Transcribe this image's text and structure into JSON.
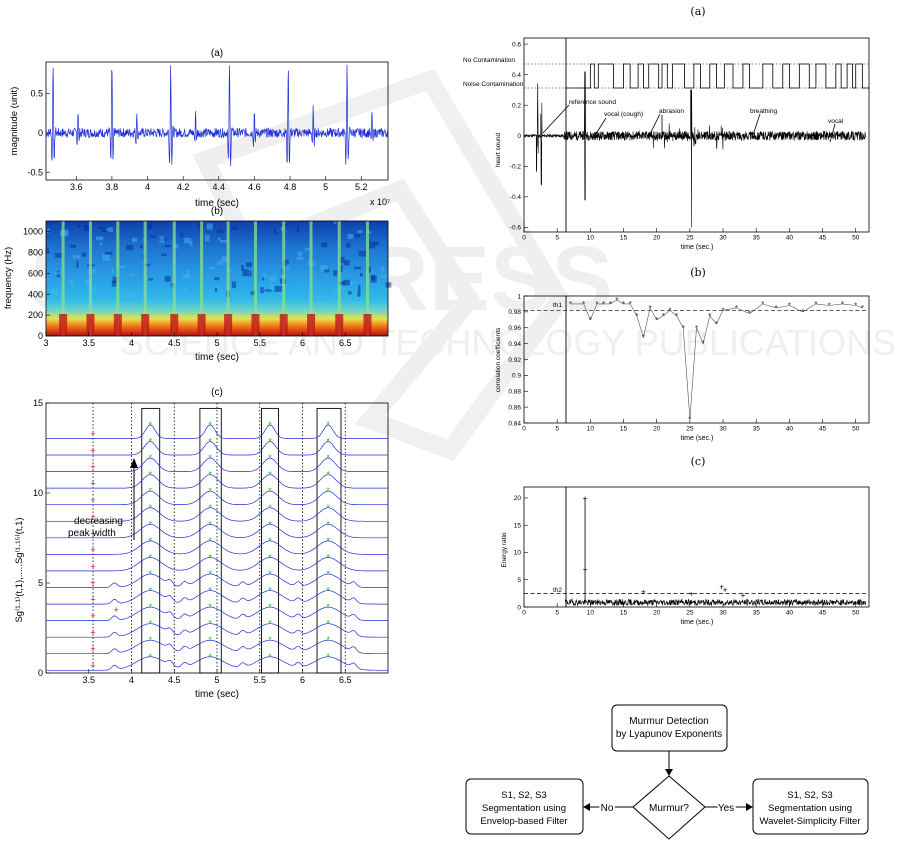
{
  "panels": {
    "left_a": {
      "label": "(a)",
      "ylabel": "magnitude (unit)",
      "xlabel": "time (sec)",
      "xticks": [
        "3.6",
        "3.8",
        "4",
        "4.2",
        "4.4",
        "4.6",
        "4.8",
        "5",
        "5.2"
      ],
      "yticks": [
        "0.5",
        "0",
        "-0.5"
      ],
      "exponent": "x 10⁷"
    },
    "left_b": {
      "label": "(b)",
      "ylabel": "frequency (Hz)",
      "xlabel": "time (sec)",
      "xticks": [
        "3",
        "3.5",
        "4",
        "4.5",
        "5",
        "5.5",
        "6",
        "6.5"
      ],
      "yticks": [
        "1000",
        "800",
        "600",
        "400",
        "200",
        "0"
      ]
    },
    "left_c": {
      "label": "(c)",
      "ylabel": "Sg⁽¹·¹⁾(t,1),.....Sg⁽¹·¹⁵⁾(t,1)",
      "xlabel": "time (sec)",
      "xticks": [
        "3.5",
        "4",
        "4.5",
        "5",
        "5.5",
        "6",
        "6.5"
      ],
      "yticks": [
        "15",
        "10",
        "5",
        "0"
      ],
      "annotation_line1": "decreasing",
      "annotation_line2": "peak width"
    },
    "right_a": {
      "label": "(a)",
      "ylabel": "heart sound",
      "xlabel": "time (sec.)",
      "xticks": [
        "0",
        "5",
        "10",
        "15",
        "20",
        "25",
        "30",
        "35",
        "40",
        "45",
        "50"
      ],
      "yticks": [
        "0.6",
        "0.4",
        "0.2",
        "0",
        "-0.2",
        "-0.4",
        "-0.6"
      ],
      "state_high": "No Contamination",
      "state_low": "Noise Contamination",
      "annotations": [
        "reference sound",
        "vocal (cough)",
        "abrasion",
        "breathing",
        "vocal"
      ]
    },
    "right_b": {
      "label": "(b)",
      "ylabel": "correlation coefficients",
      "xlabel": "time (sec.)",
      "xticks": [
        "0",
        "5",
        "10",
        "15",
        "20",
        "25",
        "30",
        "35",
        "40",
        "45",
        "50"
      ],
      "yticks": [
        "1",
        "0.98",
        "0.96",
        "0.94",
        "0.92",
        "0.9",
        "0.88",
        "0.86",
        "0.84"
      ],
      "threshold_label": "th1"
    },
    "right_c": {
      "label": "(c)",
      "ylabel": "Energy ratio",
      "xlabel": "time (sec.)",
      "xticks": [
        "0",
        "5",
        "10",
        "15",
        "20",
        "25",
        "30",
        "35",
        "40",
        "45",
        "50"
      ],
      "yticks": [
        "20",
        "15",
        "10",
        "5",
        "0"
      ],
      "threshold_label": "th2"
    }
  },
  "flowchart": {
    "top": [
      "Murmur Detection",
      "by Lyapunov Exponents"
    ],
    "decision": "Murmur?",
    "no_label": "No",
    "yes_label": "Yes",
    "left_box": [
      "S1, S2, S3",
      "Segmentation using",
      "Envelop-based Filter"
    ],
    "right_box": [
      "S1, S2, S3",
      "Segmentation using",
      "Wavelet-Simplicity Filter"
    ]
  },
  "chart_data": [
    {
      "type": "line",
      "title": "(a)",
      "xlabel": "time (sec)",
      "ylabel": "magnitude (unit)",
      "xlim": [
        3.43,
        5.35
      ],
      "ylim": [
        -0.6,
        0.9
      ],
      "x_multiplier": "x 10^7",
      "peaks_x": [
        3.47,
        3.8,
        4.13,
        4.46,
        4.79,
        5.12
      ],
      "peak_amplitude": 0.85,
      "series": [
        {
          "values": "heart-sound waveform"
        }
      ]
    },
    {
      "type": "heatmap",
      "title": "(b)",
      "xlabel": "time (sec)",
      "ylabel": "frequency (Hz)",
      "xlim": [
        3,
        7
      ],
      "ylim": [
        0,
        1100
      ],
      "beats_x": [
        3.2,
        3.52,
        3.84,
        4.16,
        4.5,
        4.82,
        5.13,
        5.45,
        5.78,
        6.1,
        6.43,
        6.76
      ]
    },
    {
      "type": "line",
      "title": "(c)",
      "xlabel": "time (sec)",
      "xlim": [
        3,
        7
      ],
      "ylim": [
        0,
        15
      ],
      "traces": 15,
      "peak_columns_x": [
        4.22,
        4.92,
        5.62,
        6.3
      ],
      "red_markers_x": 3.55,
      "dotted_lines_x": [
        3.55,
        4,
        4.5,
        5,
        5.5,
        6,
        6.5
      ],
      "boxes_x": [
        [
          4.12,
          4.33
        ],
        [
          4.8,
          5.05
        ],
        [
          5.52,
          5.72
        ],
        [
          6.17,
          6.45
        ]
      ]
    },
    {
      "type": "line",
      "title": "(a)",
      "xlabel": "time (sec.)",
      "ylabel": "heart sound",
      "xlim": [
        0,
        52
      ],
      "ylim": [
        -0.63,
        0.64
      ],
      "reference_sound_x": 6.2,
      "state_switch_times": [
        10,
        10.6,
        11.2,
        13.5,
        15,
        16,
        17.2,
        18,
        18.8,
        20.3,
        20.8,
        21.6,
        22.4,
        24.2,
        25.6,
        26.6,
        28,
        29,
        30.2,
        31.5,
        33,
        34,
        36,
        37.5,
        39,
        40,
        41.5,
        43,
        44,
        45.5,
        47,
        47.8,
        48.7,
        49.5,
        50,
        51
      ]
    },
    {
      "type": "line",
      "title": "(b)",
      "xlabel": "time (sec.)",
      "ylabel": "correlation coefficients",
      "xlim": [
        0,
        52
      ],
      "ylim": [
        0.84,
        1.0
      ],
      "threshold": 0.982,
      "series": [
        {
          "x": [
            7,
            9,
            10,
            11,
            12,
            13,
            14,
            15,
            16,
            17,
            18,
            19,
            20,
            21,
            22,
            23,
            24,
            25,
            26,
            27,
            28,
            29,
            30,
            32,
            34,
            36,
            38,
            40,
            42,
            44,
            46,
            48,
            50,
            51
          ],
          "y": [
            0.99,
            0.99,
            0.97,
            0.99,
            0.99,
            0.99,
            0.995,
            0.99,
            0.99,
            0.975,
            0.948,
            0.985,
            0.97,
            0.975,
            0.982,
            0.975,
            0.96,
            0.845,
            0.96,
            0.94,
            0.975,
            0.965,
            0.982,
            0.985,
            0.978,
            0.99,
            0.985,
            0.988,
            0.98,
            0.99,
            0.988,
            0.99,
            0.988,
            0.985
          ]
        }
      ]
    },
    {
      "type": "line",
      "title": "(c)",
      "xlabel": "time (sec.)",
      "ylabel": "Energy ratio",
      "xlim": [
        0,
        52
      ],
      "ylim": [
        0,
        22
      ],
      "threshold": 2.5,
      "spikes": [
        {
          "x": 9.2,
          "y": 20
        },
        {
          "x": 9.2,
          "y": 7
        },
        {
          "x": 18,
          "y": 2.8
        },
        {
          "x": 25.2,
          "y": 2.5
        },
        {
          "x": 29.8,
          "y": 3.8
        },
        {
          "x": 30.3,
          "y": 3.2
        },
        {
          "x": 33,
          "y": 2.2
        }
      ]
    }
  ]
}
